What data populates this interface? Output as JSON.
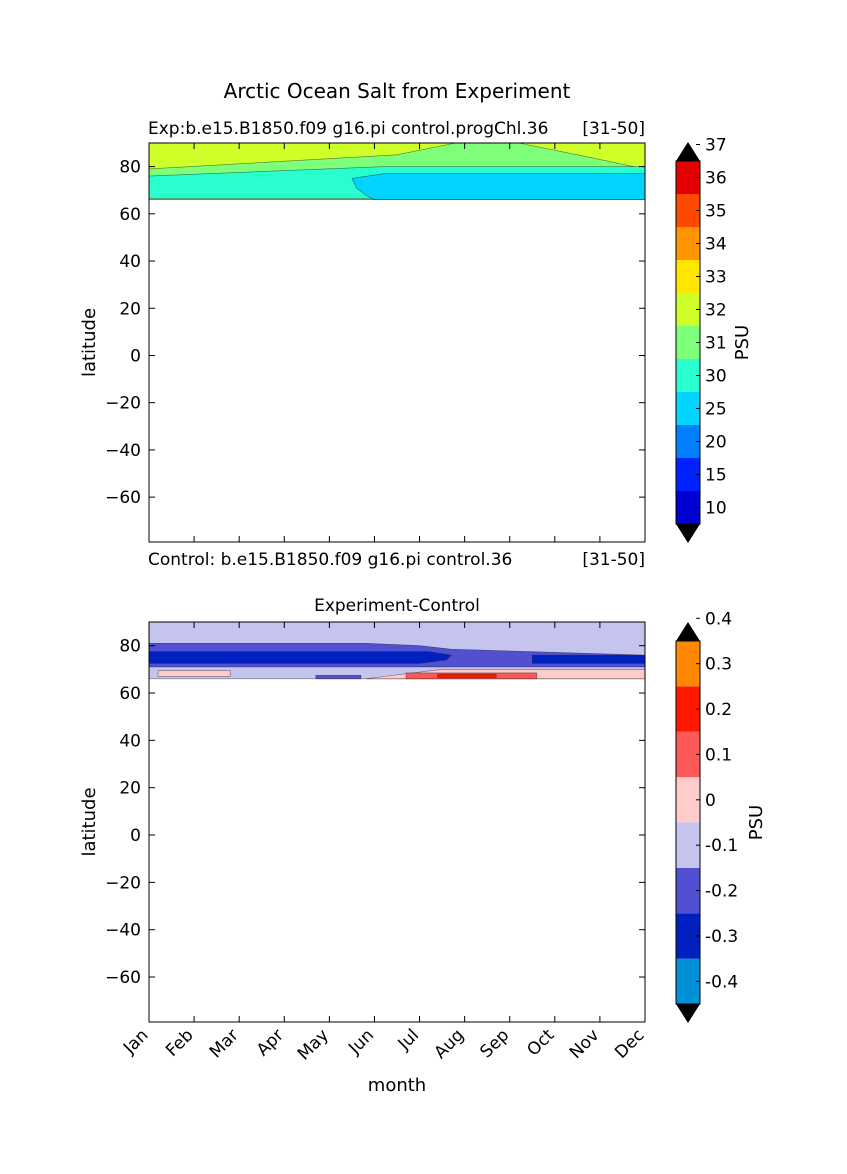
{
  "figure": {
    "suptitle": "Arctic Ocean Salt from Experiment"
  },
  "months": [
    "Jan",
    "Feb",
    "Mar",
    "Apr",
    "May",
    "Jun",
    "Jul",
    "Aug",
    "Sep",
    "Oct",
    "Nov",
    "Dec"
  ],
  "chart_data": [
    {
      "type": "heatmap",
      "title_left": "Exp:b.e15.B1850.f09 g16.pi control.progChl.36",
      "title_right": "[31-50]",
      "footer_left": "Control: b.e15.B1850.f09 g16.pi control.36",
      "footer_right": "[31-50]",
      "xlabel": "",
      "ylabel": "latitude",
      "xlim": [
        0,
        11
      ],
      "ylim": [
        -79,
        90
      ],
      "yticks": [
        -60,
        -40,
        -20,
        0,
        20,
        40,
        60,
        80
      ],
      "data_lat_range": [
        66,
        90
      ],
      "colorbar": {
        "label": "PSU",
        "levels": [
          "10",
          "15",
          "20",
          "25",
          "30",
          "31",
          "32",
          "33",
          "34",
          "35",
          "36",
          "37"
        ],
        "colors": [
          "#00007f",
          "#0000d0",
          "#0022ff",
          "#0080ff",
          "#00d4ff",
          "#29ffce",
          "#7dff7a",
          "#ceff29",
          "#ffe500",
          "#ff9400",
          "#ff4800",
          "#e20000",
          "#7f0000"
        ],
        "extend": "both"
      },
      "regions": [
        {
          "level_index": 7,
          "label": "32-33",
          "rows": [
            {
              "lat": 90,
              "x": [
                0,
                11
              ]
            },
            {
              "lat": 66,
              "x": [
                0,
                11
              ]
            }
          ]
        },
        {
          "level_index": 6,
          "label": "31-32",
          "rows": [
            {
              "lat": 90,
              "x": [
                6.8,
                8.2
              ]
            },
            {
              "lat": 85,
              "x": [
                5.5,
                9.5
              ]
            },
            {
              "lat": 79,
              "x": [
                0,
                11
              ]
            },
            {
              "lat": 73,
              "x": [
                0,
                11
              ]
            },
            {
              "lat": 67,
              "x": [
                0,
                11
              ]
            },
            {
              "lat": 66,
              "x": [
                0,
                11
              ]
            }
          ]
        },
        {
          "level_index": 5,
          "label": "30-31",
          "rows": [
            {
              "lat": 80,
              "x": [
                5.2,
                11
              ]
            },
            {
              "lat": 76,
              "x": [
                0,
                11
              ]
            },
            {
              "lat": 68,
              "x": [
                0,
                11
              ]
            },
            {
              "lat": 66.5,
              "x": [
                0,
                11
              ]
            }
          ]
        },
        {
          "level_index": 4,
          "label": "25-30",
          "rows": [
            {
              "lat": 77,
              "x": [
                5.2,
                11
              ]
            },
            {
              "lat": 75,
              "x": [
                4.5,
                11
              ]
            },
            {
              "lat": 71,
              "x": [
                4.6,
                11
              ]
            },
            {
              "lat": 68,
              "x": [
                4.8,
                11
              ]
            },
            {
              "lat": 66,
              "x": [
                5.0,
                11
              ]
            }
          ]
        }
      ]
    },
    {
      "type": "heatmap",
      "title": "Experiment-Control",
      "xlabel": "month",
      "ylabel": "latitude",
      "xlim": [
        0,
        11
      ],
      "ylim": [
        -79,
        90
      ],
      "yticks": [
        -60,
        -40,
        -20,
        0,
        20,
        40,
        60,
        80
      ],
      "data_lat_range": [
        66,
        90
      ],
      "colorbar": {
        "label": "PSU",
        "levels": [
          "-0.4",
          "-0.3",
          "-0.2",
          "-0.1",
          "0",
          "0.1",
          "0.2",
          "0.3",
          "0.4"
        ],
        "colors": [
          "#00ffff",
          "#0090d8",
          "#0020c0",
          "#5050d0",
          "#c4c4ee",
          "#ffcccc",
          "#ff5858",
          "#ff1800",
          "#ff8800",
          "#ffff00"
        ],
        "extend": "both"
      },
      "regions": [
        {
          "level_index": 4,
          "label": "-0.1-0",
          "rows": [
            {
              "lat": 90,
              "x": [
                0,
                11
              ]
            },
            {
              "lat": 66,
              "x": [
                0,
                11
              ]
            }
          ]
        },
        {
          "level_index": 3,
          "label": "-0.2--0.1",
          "rows": [
            {
              "lat": 81,
              "x": [
                0,
                4.8
              ]
            },
            {
              "lat": 80,
              "x": [
                0,
                6.0
              ]
            },
            {
              "lat": 78.5,
              "x": [
                0,
                6.7
              ]
            },
            {
              "lat": 76,
              "x": [
                0,
                11
              ]
            },
            {
              "lat": 73,
              "x": [
                0,
                11
              ]
            },
            {
              "lat": 71,
              "x": [
                0,
                11
              ]
            }
          ]
        },
        {
          "level_index": 2,
          "label": "-0.3--0.2",
          "rows": [
            {
              "lat": 77.5,
              "x": [
                0,
                6.2
              ]
            },
            {
              "lat": 76,
              "x": [
                0,
                6.7
              ]
            },
            {
              "lat": 74,
              "x": [
                0,
                6.6
              ]
            },
            {
              "lat": 72.5,
              "x": [
                0,
                6.0
              ]
            }
          ]
        },
        {
          "level_index": 2,
          "label": "-0.3--0.2",
          "rows": [
            {
              "lat": 76,
              "x": [
                8.5,
                11
              ]
            },
            {
              "lat": 72.5,
              "x": [
                8.5,
                11
              ]
            }
          ]
        },
        {
          "level_index": 5,
          "label": "0-0.1",
          "rows": [
            {
              "lat": 69.5,
              "x": [
                0.2,
                1.8
              ]
            },
            {
              "lat": 67,
              "x": [
                0.2,
                1.8
              ]
            }
          ]
        },
        {
          "level_index": 5,
          "label": "0-0.1",
          "rows": [
            {
              "lat": 70,
              "x": [
                6.5,
                11
              ]
            },
            {
              "lat": 66,
              "x": [
                4.8,
                11
              ]
            }
          ]
        },
        {
          "level_index": 6,
          "label": "0.1-0.2",
          "rows": [
            {
              "lat": 68.5,
              "x": [
                5.7,
                8.6
              ]
            },
            {
              "lat": 66,
              "x": [
                5.7,
                8.6
              ]
            }
          ]
        },
        {
          "level_index": 7,
          "label": "0.2-0.3",
          "rows": [
            {
              "lat": 68,
              "x": [
                6.4,
                7.7
              ]
            },
            {
              "lat": 66.5,
              "x": [
                6.4,
                7.7
              ]
            }
          ]
        },
        {
          "level_index": 3,
          "label": "-0.2--0.1",
          "rows": [
            {
              "lat": 67.5,
              "x": [
                3.7,
                4.7
              ]
            },
            {
              "lat": 66,
              "x": [
                3.7,
                4.7
              ]
            }
          ]
        }
      ]
    }
  ]
}
